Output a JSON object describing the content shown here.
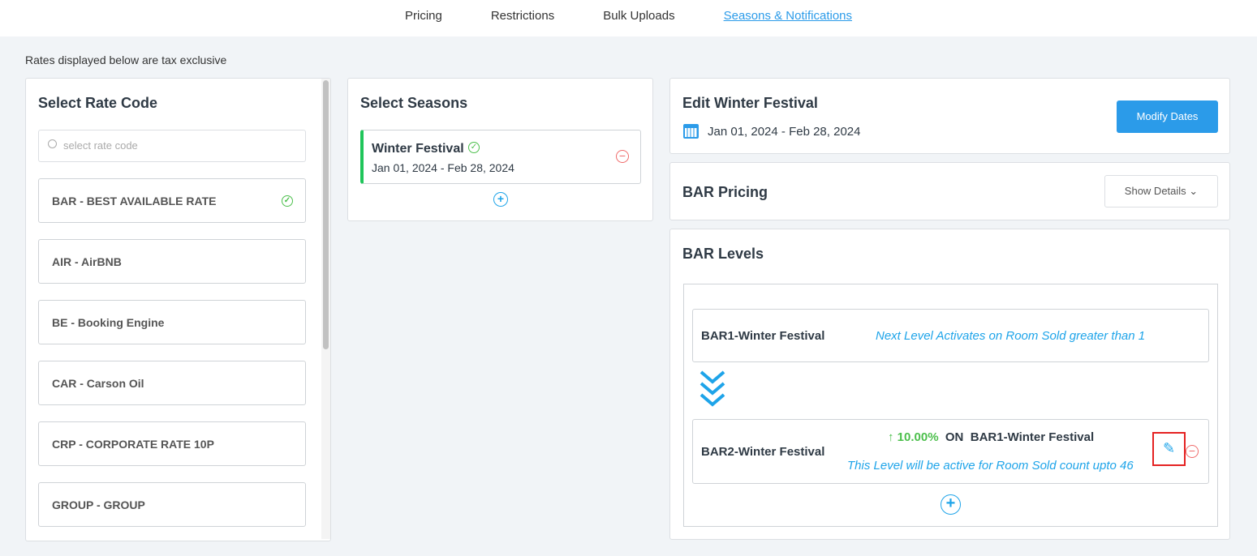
{
  "nav": {
    "tabs": [
      "Pricing",
      "Restrictions",
      "Bulk Uploads",
      "Seasons & Notifications"
    ],
    "active": "Seasons & Notifications"
  },
  "note": "Rates displayed below are tax exclusive",
  "rate_codes": {
    "title": "Select Rate Code",
    "placeholder": "select rate code",
    "items": [
      "BAR - BEST AVAILABLE RATE",
      "AIR - AirBNB",
      "BE - Booking Engine",
      "CAR - Carson Oil",
      "CRP - CORPORATE RATE 10P",
      "GROUP - GROUP"
    ],
    "selected": "BAR - BEST AVAILABLE RATE"
  },
  "seasons": {
    "title": "Select Seasons",
    "items": [
      {
        "name": "Winter Festival",
        "dates": "Jan 01, 2024 - Feb 28, 2024"
      }
    ]
  },
  "edit": {
    "title": "Edit Winter Festival",
    "dates": "Jan 01, 2024 - Feb 28, 2024",
    "modify_label": "Modify Dates"
  },
  "pricing": {
    "title": "BAR Pricing",
    "show_details": "Show Details"
  },
  "levels": {
    "title": "BAR Levels",
    "items": [
      {
        "name": "BAR1-Winter Festival",
        "info": "Next Level Activates on Room Sold greater than 1"
      },
      {
        "name": "BAR2-Winter Festival",
        "change": "10.00%",
        "on_label": "ON",
        "base": "BAR1-Winter Festival",
        "info": "This Level will be active for Room Sold count upto 46"
      }
    ]
  },
  "colors": {
    "accent": "#2b9be9",
    "success": "#4cbf4c",
    "danger": "#f06b6b",
    "highlight": "#e52222"
  }
}
